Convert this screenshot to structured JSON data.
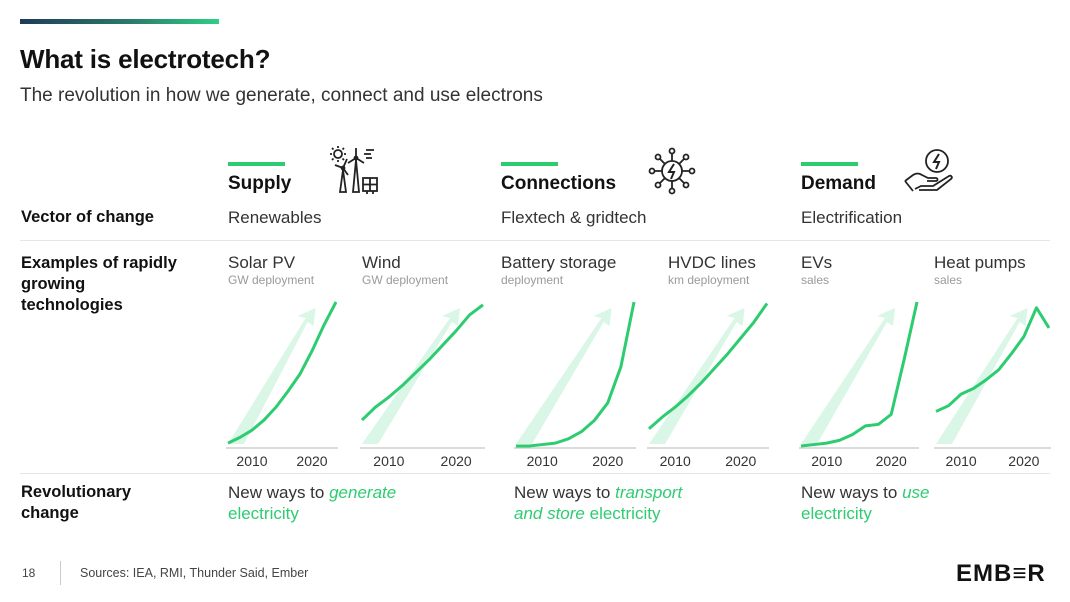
{
  "header": {
    "title": "What is electrotech?",
    "subtitle": "The revolution in how we generate, connect and use electrons"
  },
  "row_labels": {
    "vector": "Vector of change",
    "examples": [
      "Examples of rapidly",
      "growing",
      "technologies"
    ],
    "revolutionary": [
      "Revolutionary",
      "change"
    ]
  },
  "columns": [
    {
      "heading": "Supply",
      "icon": "wind-solar-icon",
      "vector": "Renewables",
      "change": {
        "pre": "New ways to ",
        "accent": "generate",
        "line2_plain": "",
        "line2_accent": "electricity"
      }
    },
    {
      "heading": "Connections",
      "icon": "network-lightning-icon",
      "vector": "Flextech & gridtech",
      "change": {
        "pre": "New ways to ",
        "accent": "transport",
        "line2_accent": "and store",
        "line2_plain": " electricity"
      }
    },
    {
      "heading": "Demand",
      "icon": "hand-lightning-icon",
      "vector": "Electrification",
      "change": {
        "pre": "New ways to ",
        "accent": "use",
        "line2_plain": "",
        "line2_accent": "electricity"
      }
    }
  ],
  "colors": {
    "accent": "#2ecc71",
    "accent_light": "#d9f6e6",
    "axis": "#cfcfcf"
  },
  "chart_data": [
    {
      "type": "line",
      "name": "Solar PV",
      "unit": "GW deployment",
      "x": [
        2006,
        2008,
        2010,
        2012,
        2014,
        2016,
        2018,
        2020,
        2022,
        2024
      ],
      "values": [
        0.02,
        0.06,
        0.11,
        0.18,
        0.27,
        0.38,
        0.5,
        0.66,
        0.84,
        1.0
      ],
      "xticks": [
        "2010",
        "2020"
      ]
    },
    {
      "type": "line",
      "name": "Wind",
      "unit": "GW deployment",
      "x": [
        2006,
        2008,
        2010,
        2012,
        2014,
        2016,
        2018,
        2020,
        2022,
        2024
      ],
      "values": [
        0.18,
        0.27,
        0.34,
        0.42,
        0.51,
        0.6,
        0.7,
        0.8,
        0.91,
        0.98
      ],
      "xticks": [
        "2010",
        "2020"
      ]
    },
    {
      "type": "line",
      "name": "Battery storage",
      "unit": "deployment",
      "x": [
        2006,
        2008,
        2010,
        2012,
        2014,
        2016,
        2018,
        2020,
        2022,
        2024
      ],
      "values": [
        0.0,
        0.0,
        0.01,
        0.02,
        0.05,
        0.1,
        0.18,
        0.3,
        0.55,
        1.0
      ],
      "xticks": [
        "2010",
        "2020"
      ]
    },
    {
      "type": "line",
      "name": "HVDC lines",
      "unit": "km deployment",
      "x": [
        2006,
        2008,
        2010,
        2012,
        2014,
        2016,
        2018,
        2020,
        2022,
        2024
      ],
      "values": [
        0.12,
        0.2,
        0.27,
        0.35,
        0.44,
        0.54,
        0.64,
        0.75,
        0.86,
        0.99
      ],
      "xticks": [
        "2010",
        "2020"
      ]
    },
    {
      "type": "line",
      "name": "EVs",
      "unit": "sales",
      "x": [
        2006,
        2008,
        2010,
        2012,
        2014,
        2016,
        2018,
        2020,
        2022,
        2024
      ],
      "values": [
        0.0,
        0.01,
        0.02,
        0.04,
        0.08,
        0.14,
        0.15,
        0.22,
        0.6,
        1.0
      ],
      "xticks": [
        "2010",
        "2020"
      ]
    },
    {
      "type": "line",
      "name": "Heat pumps",
      "unit": "sales",
      "x": [
        2006,
        2008,
        2010,
        2012,
        2014,
        2016,
        2018,
        2020,
        2022,
        2024
      ],
      "values": [
        0.24,
        0.28,
        0.36,
        0.4,
        0.46,
        0.53,
        0.64,
        0.76,
        0.96,
        0.82
      ],
      "xticks": [
        "2010",
        "2020"
      ]
    }
  ],
  "footer": {
    "page": "18",
    "sources": "Sources: IEA, RMI, Thunder Said, Ember",
    "logo": "EMB≡R"
  }
}
